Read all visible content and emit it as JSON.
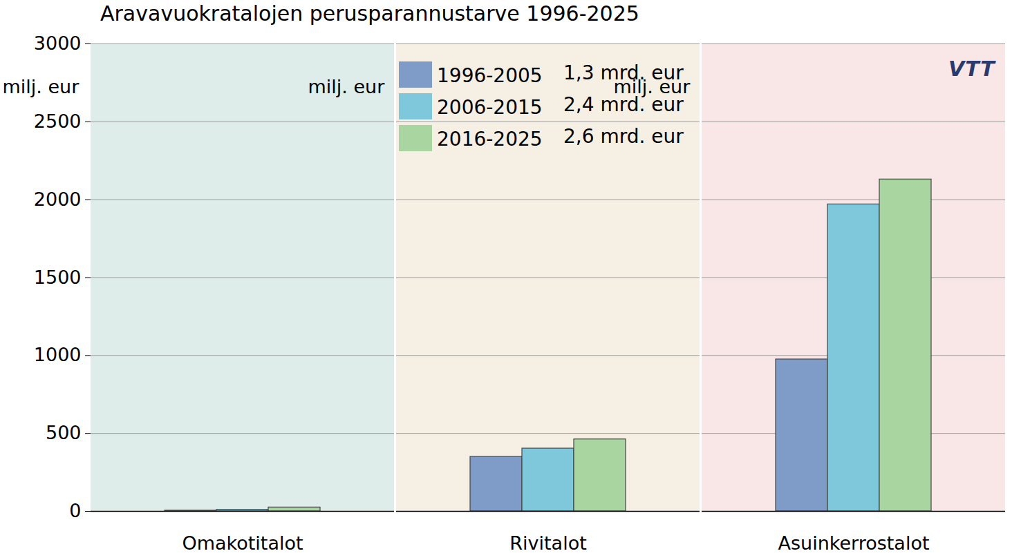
{
  "chart_data": {
    "type": "bar",
    "title": "Aravavuokratalojen perusparannustarve 1996-2025",
    "y_label": "milj. eur",
    "categories": [
      "Omakotitalot",
      "Rivitalot",
      "Asuinkerrostalot"
    ],
    "series": [
      {
        "name": "1996-2005",
        "total_label": "1,3 mrd. eur",
        "color": "#7f9cc8",
        "values": [
          5,
          350,
          975
        ]
      },
      {
        "name": "2006-2015",
        "total_label": "2,4 mrd. eur",
        "color": "#7fc8dc",
        "values": [
          10,
          403,
          1970
        ]
      },
      {
        "name": "2016-2025",
        "total_label": "2,6 mrd. eur",
        "color": "#a8d5a0",
        "values": [
          25,
          462,
          2130
        ]
      }
    ],
    "ylim": [
      0,
      3000
    ],
    "yticks": [
      0,
      500,
      1000,
      1500,
      2000,
      2500,
      3000
    ],
    "grid": true,
    "legend": "top",
    "logo": "VTT"
  }
}
